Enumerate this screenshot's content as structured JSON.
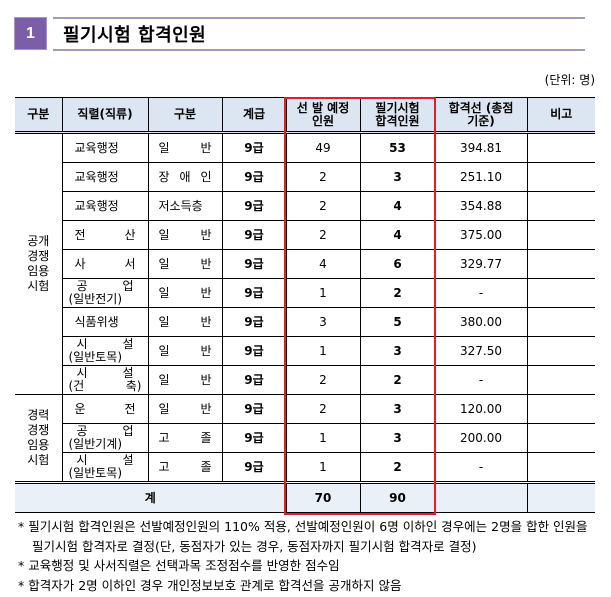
{
  "section": {
    "number": "1",
    "title": "필기시험 합격인원"
  },
  "unit": "(단위: 명)",
  "table": {
    "headers": [
      "구분",
      "직렬(직류)",
      "구분",
      "계급",
      "선 발 예정인원",
      "필기시험 합격인원",
      "합격선 (총점기준)",
      "비고"
    ],
    "groups": [
      {
        "label": "공개 경쟁 임용 시험",
        "rows": [
          {
            "job": "교육행정",
            "job2": "",
            "type": "일 반",
            "grade": "9급",
            "planned": "49",
            "passed": "53",
            "cutoff": "394.81",
            "note": ""
          },
          {
            "job": "교육행정",
            "job2": "",
            "type": "장 애 인",
            "grade": "9급",
            "planned": "2",
            "passed": "3",
            "cutoff": "251.10",
            "note": ""
          },
          {
            "job": "교육행정",
            "job2": "",
            "type": "저소득층",
            "grade": "9급",
            "planned": "2",
            "passed": "4",
            "cutoff": "354.88",
            "note": ""
          },
          {
            "job": "전 산",
            "job2": "",
            "type": "일 반",
            "grade": "9급",
            "planned": "2",
            "passed": "4",
            "cutoff": "375.00",
            "note": ""
          },
          {
            "job": "사 서",
            "job2": "",
            "type": "일 반",
            "grade": "9급",
            "planned": "4",
            "passed": "6",
            "cutoff": "329.77",
            "note": ""
          },
          {
            "job": "공 업",
            "job2": "(일반전기)",
            "type": "일 반",
            "grade": "9급",
            "planned": "1",
            "passed": "2",
            "cutoff": "-",
            "note": ""
          },
          {
            "job": "식품위생",
            "job2": "",
            "type": "일 반",
            "grade": "9급",
            "planned": "3",
            "passed": "5",
            "cutoff": "380.00",
            "note": ""
          },
          {
            "job": "시 설",
            "job2": "(일반토목)",
            "type": "일 반",
            "grade": "9급",
            "planned": "1",
            "passed": "3",
            "cutoff": "327.50",
            "note": ""
          },
          {
            "job": "시 설",
            "job2": "(건 축)",
            "type": "일 반",
            "grade": "9급",
            "planned": "2",
            "passed": "2",
            "cutoff": "-",
            "note": ""
          }
        ]
      },
      {
        "label": "경력 경쟁 임용 시험",
        "rows": [
          {
            "job": "운 전",
            "job2": "",
            "type": "일 반",
            "grade": "9급",
            "planned": "2",
            "passed": "3",
            "cutoff": "120.00",
            "note": ""
          },
          {
            "job": "공 업",
            "job2": "(일반기계)",
            "type": "고 졸",
            "grade": "9급",
            "planned": "1",
            "passed": "3",
            "cutoff": "200.00",
            "note": ""
          },
          {
            "job": "시 설",
            "job2": "(일반토목)",
            "type": "고 졸",
            "grade": "9급",
            "planned": "1",
            "passed": "2",
            "cutoff": "-",
            "note": ""
          }
        ]
      }
    ],
    "total": {
      "label": "계",
      "planned": "70",
      "passed": "90",
      "cutoff": "",
      "note": ""
    }
  },
  "highlight_color": "#e41e26",
  "header_bg": "#dce6f2",
  "accent": "#7b5ea7",
  "notes": [
    "* 필기시험 합격인원은 선발예정인원의 110% 적용, 선발예정인원이 6명 이하인 경우에는 2명을 합한 인원을 필기시험 합격자로 결정(단, 동점자가 있는 경우, 동점자까지 필기시험 합격자로 결정)",
    "* 교육행정 및 사서직렬은 선택과목 조정점수를 반영한 점수임",
    "* 합격자가 2명 이하인 경우 개인정보보호 관계로 합격선을 공개하지 않음"
  ]
}
